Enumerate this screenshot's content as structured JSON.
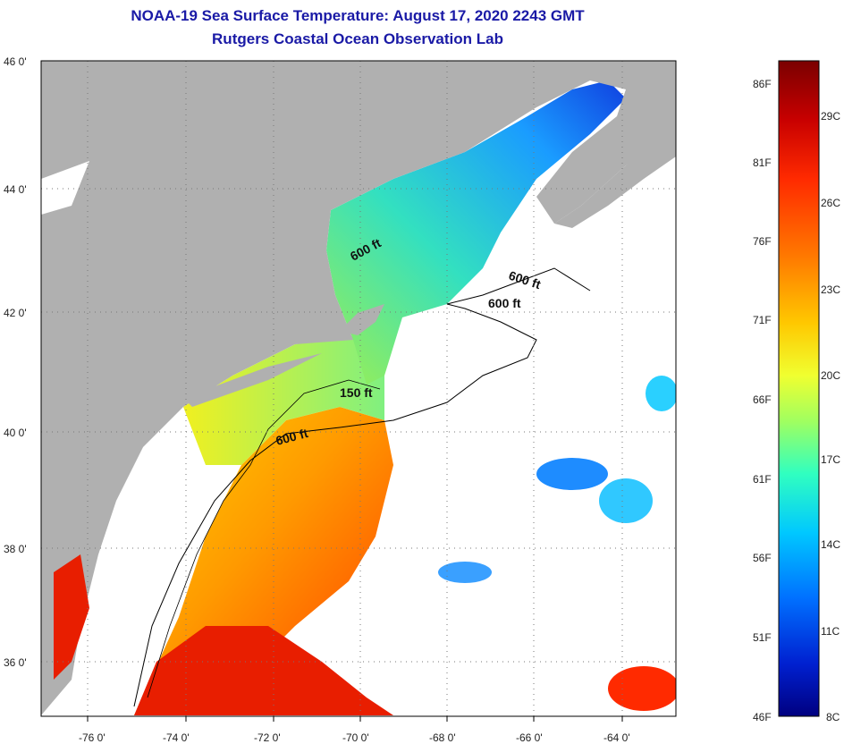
{
  "title": {
    "line1": "NOAA-19 Sea Surface Temperature:  August 17, 2020 2243 GMT",
    "line2": "Rutgers Coastal Ocean Observation Lab"
  },
  "axes": {
    "longitude_ticks": [
      "-76 0'",
      "-74 0'",
      "-72 0'",
      "-70 0'",
      "-68 0'",
      "-66 0'",
      "-64 0'"
    ],
    "latitude_ticks": [
      "46 0'",
      "44 0'",
      "42 0'",
      "40 0'",
      "38 0'",
      "36 0'"
    ]
  },
  "contour_labels": [
    "600 ft",
    "600 ft",
    "600 ft",
    "150 ft",
    "600 ft"
  ],
  "colorbar": {
    "fahrenheit_labels": [
      "86F",
      "81F",
      "76F",
      "71F",
      "66F",
      "61F",
      "56F",
      "51F",
      "46F"
    ],
    "celsius_labels": [
      "29C",
      "26C",
      "23C",
      "20C",
      "17C",
      "14C",
      "11C",
      "8C"
    ],
    "colors": [
      "#7a0000",
      "#c80000",
      "#ff2a00",
      "#ff7a00",
      "#ffc800",
      "#f0ff30",
      "#a0ff60",
      "#30ffc0",
      "#00c8ff",
      "#0070ff",
      "#0020d0",
      "#000080"
    ]
  },
  "colors": {
    "land": "#b0b0b0",
    "cloud": "#ffffff",
    "title": "#1a1aa6"
  }
}
